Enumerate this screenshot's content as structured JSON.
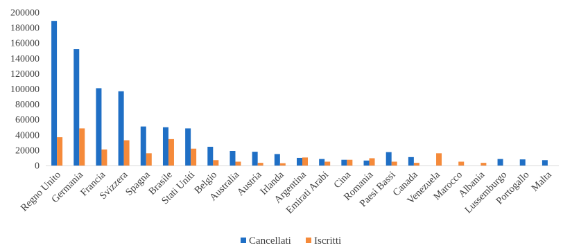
{
  "chart_data": {
    "type": "bar",
    "categories": [
      "Regno Unito",
      "Germania",
      "Francia",
      "Svizzera",
      "Spagna",
      "Brasile",
      "Stati Uniti",
      "Belgio",
      "Australia",
      "Austria",
      "Irlanda",
      "Argentina",
      "Emirati Arabi",
      "Cina",
      "Romania",
      "Paesi Bassi",
      "Canada",
      "Venezuela",
      "Marocco",
      "Albania",
      "Lussemburgo",
      "Portogallo",
      "Malta"
    ],
    "series": [
      {
        "name": "Cancellati",
        "color": "#1f6fc5",
        "values": [
          189000,
          152000,
          101000,
          97000,
          51000,
          50000,
          48500,
          24500,
          19000,
          18000,
          15000,
          10000,
          8500,
          7500,
          6500,
          17500,
          11000,
          0,
          0,
          0,
          8500,
          8000,
          7000
        ]
      },
      {
        "name": "Iscritti",
        "color": "#f58a3a",
        "values": [
          37000,
          48500,
          21000,
          33000,
          16000,
          34500,
          22000,
          7000,
          5000,
          3500,
          3000,
          10500,
          5000,
          7500,
          9500,
          5000,
          3500,
          16000,
          5000,
          3500,
          0,
          0,
          0
        ]
      }
    ],
    "yticks": [
      "0",
      "20000",
      "40000",
      "60000",
      "80000",
      "100000",
      "120000",
      "140000",
      "160000",
      "180000",
      "200000"
    ],
    "ylim": [
      0,
      200000
    ],
    "grid": false,
    "legend_position": "bottom",
    "title": "",
    "xlabel": "",
    "ylabel": ""
  }
}
